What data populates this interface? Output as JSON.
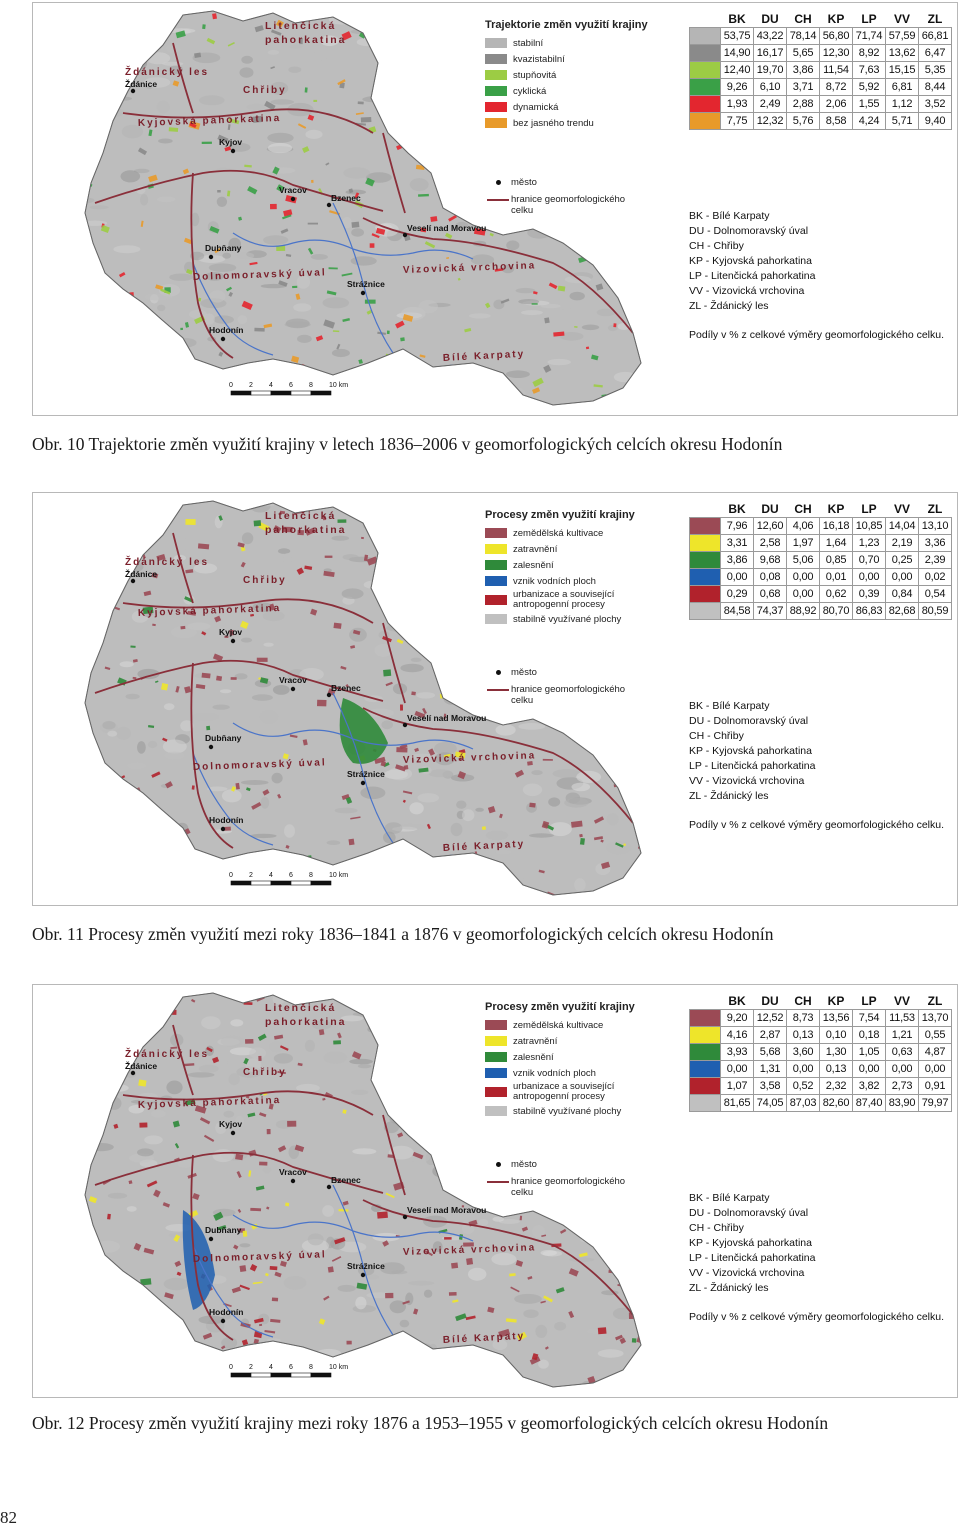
{
  "figures": [
    {
      "caption": "Obr. 10 Trajektorie změn využití krajiny v letech 1836–2006 v geomorfologických celcích okresu Hodonín",
      "legend_title": "Trajektorie změn využití krajiny",
      "legend": [
        {
          "label": "stabilní",
          "color": "#b5b5b5"
        },
        {
          "label": "kvazistabilní",
          "color": "#8a8a8a"
        },
        {
          "label": "stupňovitá",
          "color": "#9ccc44"
        },
        {
          "label": "cyklická",
          "color": "#3aa047"
        },
        {
          "label": "dynamická",
          "color": "#e3262f"
        },
        {
          "label": "bez jasného trendu",
          "color": "#e89a2a"
        }
      ],
      "columns": [
        "BK",
        "DU",
        "CH",
        "KP",
        "LP",
        "VV",
        "ZL"
      ],
      "rows": [
        [
          "53,75",
          "43,22",
          "78,14",
          "56,80",
          "71,74",
          "57,59",
          "66,81"
        ],
        [
          "14,90",
          "16,17",
          "5,65",
          "12,30",
          "8,92",
          "13,62",
          "6,47"
        ],
        [
          "12,40",
          "19,70",
          "3,86",
          "11,54",
          "7,63",
          "15,15",
          "5,35"
        ],
        [
          "9,26",
          "6,10",
          "3,71",
          "8,72",
          "5,92",
          "6,81",
          "8,44"
        ],
        [
          "1,93",
          "2,49",
          "2,88",
          "2,06",
          "1,55",
          "1,12",
          "3,52"
        ],
        [
          "7,75",
          "12,32",
          "5,76",
          "8,58",
          "4,24",
          "5,71",
          "9,40"
        ]
      ],
      "map_colors": [
        "#b5b5b5",
        "#8a8a8a",
        "#9ccc44",
        "#3aa047",
        "#e3262f",
        "#e89a2a"
      ]
    },
    {
      "caption": "Obr. 11 Procesy změn využití mezi roky 1836–1841 a 1876 v geomorfologických celcích okresu Hodonín",
      "legend_title": "Procesy změn využití krajiny",
      "legend": [
        {
          "label": "zemědělská kultivace",
          "color": "#9b4a55"
        },
        {
          "label": "zatravnění",
          "color": "#eee52a"
        },
        {
          "label": "zalesnění",
          "color": "#2f8a3a"
        },
        {
          "label": "vznik vodních ploch",
          "color": "#1f5fb0"
        },
        {
          "label": "urbanizace a související antropogenní procesy",
          "color": "#b1222c"
        },
        {
          "label": "stabilně využívané plochy",
          "color": "#c0c0c0"
        }
      ],
      "columns": [
        "BK",
        "DU",
        "CH",
        "KP",
        "LP",
        "VV",
        "ZL"
      ],
      "rows": [
        [
          "7,96",
          "12,60",
          "4,06",
          "16,18",
          "10,85",
          "14,04",
          "13,10"
        ],
        [
          "3,31",
          "2,58",
          "1,97",
          "1,64",
          "1,23",
          "2,19",
          "3,36"
        ],
        [
          "3,86",
          "9,68",
          "5,06",
          "0,85",
          "0,70",
          "0,25",
          "2,39"
        ],
        [
          "0,00",
          "0,08",
          "0,00",
          "0,01",
          "0,00",
          "0,00",
          "0,02"
        ],
        [
          "0,29",
          "0,68",
          "0,00",
          "0,62",
          "0,39",
          "0,84",
          "0,54"
        ],
        [
          "84,58",
          "74,37",
          "88,92",
          "80,70",
          "86,83",
          "82,68",
          "80,59"
        ]
      ],
      "map_colors": [
        "#9b4a55",
        "#eee52a",
        "#2f8a3a",
        "#1f5fb0",
        "#b1222c",
        "#c0c0c0"
      ]
    },
    {
      "caption": "Obr. 12 Procesy změn využití krajiny mezi roky 1876 a 1953–1955 v geomorfologických celcích okresu Hodonín",
      "legend_title": "Procesy změn využití krajiny",
      "legend": [
        {
          "label": "zemědělská kultivace",
          "color": "#9b4a55"
        },
        {
          "label": "zatravnění",
          "color": "#eee52a"
        },
        {
          "label": "zalesnění",
          "color": "#2f8a3a"
        },
        {
          "label": "vznik vodních ploch",
          "color": "#1f5fb0"
        },
        {
          "label": "urbanizace a související antropogenní procesy",
          "color": "#b1222c"
        },
        {
          "label": "stabilně využívané plochy",
          "color": "#c0c0c0"
        }
      ],
      "columns": [
        "BK",
        "DU",
        "CH",
        "KP",
        "LP",
        "VV",
        "ZL"
      ],
      "rows": [
        [
          "9,20",
          "12,52",
          "8,73",
          "13,56",
          "7,54",
          "11,53",
          "13,70"
        ],
        [
          "4,16",
          "2,87",
          "0,13",
          "0,10",
          "0,18",
          "1,21",
          "0,55"
        ],
        [
          "3,93",
          "5,68",
          "3,60",
          "1,30",
          "1,05",
          "0,63",
          "4,87"
        ],
        [
          "0,00",
          "1,31",
          "0,00",
          "0,13",
          "0,00",
          "0,00",
          "0,00"
        ],
        [
          "1,07",
          "3,58",
          "0,52",
          "2,32",
          "3,82",
          "2,73",
          "0,91"
        ],
        [
          "81,65",
          "74,05",
          "87,03",
          "82,60",
          "87,40",
          "83,90",
          "79,97"
        ]
      ],
      "map_colors": [
        "#9b4a55",
        "#eee52a",
        "#2f8a3a",
        "#1f5fb0",
        "#b1222c",
        "#c0c0c0"
      ]
    }
  ],
  "map_legend": {
    "city": "město",
    "boundary": "hranice geomorfologického celku"
  },
  "abbreviations": [
    "BK - Bílé Karpaty",
    "DU - Dolnomoravský úval",
    "CH - Chřiby",
    "KP - Kyjovská pahorkatina",
    "LP - Litenčická pahorkatina",
    "VV - Vizovická vrchovina",
    "ZL - Ždánický les"
  ],
  "share_note": "Podíly v % z celkové výměry geomorfologického celku.",
  "regions": [
    "Litenčická",
    "pahorkatina",
    "Ždánický les",
    "Chřiby",
    "Kyjovská pahorkatina",
    "Dolnomoravský úval",
    "Vizovická vrchovina",
    "Bílé Karpaty"
  ],
  "cities": [
    "Ždánice",
    "Kyjov",
    "Vracov",
    "Bzenec",
    "Veselí nad Moravou",
    "Dubňany",
    "Strážnice",
    "Hodonín"
  ],
  "scale": {
    "ticks": [
      "0",
      "2",
      "4",
      "6",
      "8",
      "10 km"
    ]
  },
  "page_number": "82"
}
